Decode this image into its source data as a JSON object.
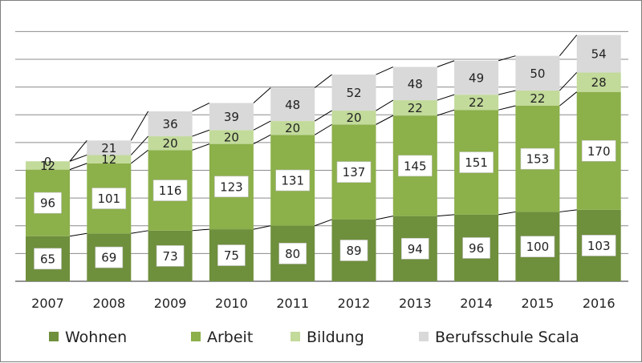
{
  "chart_data": {
    "type": "bar",
    "stacked": true,
    "title": "",
    "xlabel": "",
    "ylabel": "",
    "ylim": [
      0,
      380
    ],
    "grid": true,
    "legend_position": "bottom",
    "categories": [
      "2007",
      "2008",
      "2009",
      "2010",
      "2011",
      "2012",
      "2013",
      "2014",
      "2015",
      "2016"
    ],
    "series": [
      {
        "name": "Wohnen",
        "color": "#6e8f3c",
        "values": [
          65,
          69,
          73,
          75,
          80,
          89,
          94,
          96,
          100,
          103
        ]
      },
      {
        "name": "Arbeit",
        "color": "#8cb04a",
        "values": [
          96,
          101,
          116,
          123,
          131,
          137,
          145,
          151,
          153,
          170
        ]
      },
      {
        "name": "Bildung",
        "color": "#c2da9a",
        "values": [
          12,
          12,
          20,
          20,
          20,
          20,
          22,
          22,
          22,
          28
        ]
      },
      {
        "name": "Berufsschule Scala",
        "color": "#d9d9d9",
        "values": [
          0,
          21,
          36,
          39,
          48,
          52,
          48,
          49,
          50,
          54
        ]
      }
    ]
  }
}
